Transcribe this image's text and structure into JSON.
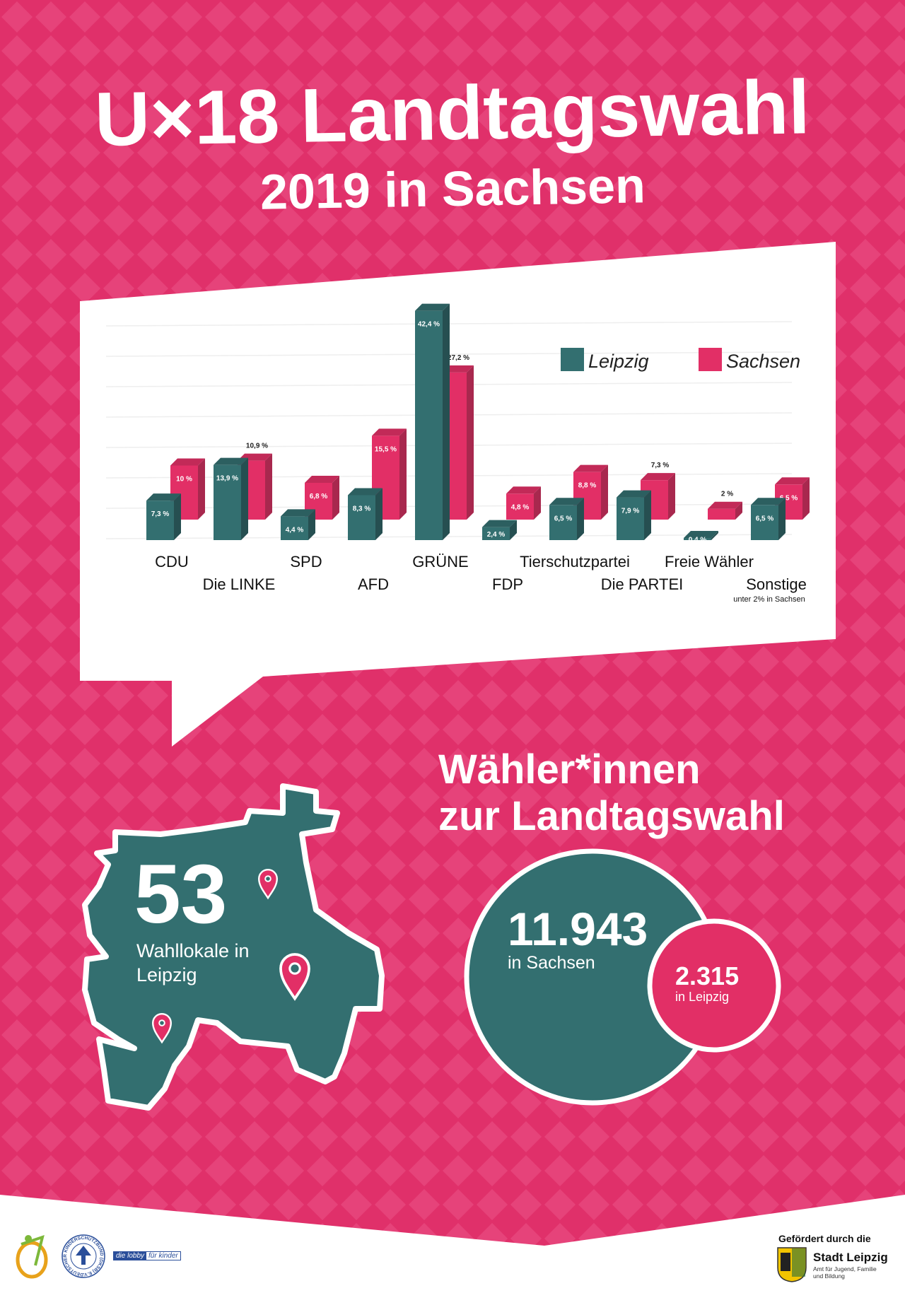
{
  "title": {
    "line1": "U×18 Landtagswahl",
    "line2": "2019 in Sachsen"
  },
  "colors": {
    "background": "#E0306A",
    "pattern": "#E84A7E",
    "leipzig": "#336F70",
    "sachsen": "#E22F66"
  },
  "chart_data": {
    "type": "bar",
    "categories": [
      "CDU",
      "Die LINKE",
      "SPD",
      "AFD",
      "GRÜNE",
      "FDP",
      "Tierschutzpartei",
      "Die PARTEI",
      "Freie Wähler",
      "Sonstige"
    ],
    "category_notes": {
      "Sonstige": "unter 2% in Sachsen"
    },
    "series": [
      {
        "name": "Leipzig",
        "values": [
          7.3,
          13.9,
          4.4,
          8.3,
          42.4,
          2.4,
          6.5,
          7.9,
          0.4,
          6.5
        ],
        "labels": [
          "7,3 %",
          "13,9 %",
          "4,4 %",
          "8,3 %",
          "42,4 %",
          "2,4 %",
          "6,5 %",
          "7,9 %",
          "0,4 %",
          "6,5 %"
        ]
      },
      {
        "name": "Sachsen",
        "values": [
          10,
          10.9,
          6.8,
          15.5,
          27.2,
          4.8,
          8.8,
          7.3,
          2,
          6.5
        ],
        "labels": [
          "10 %",
          "10,9 %",
          "6,8 %",
          "15,5 %",
          "27,2 %",
          "4,8 %",
          "8,8 %",
          "7,3 %",
          "2 %",
          "6,5 %"
        ]
      }
    ],
    "unit": "%",
    "legend_position": "top-right",
    "grid": true,
    "style": "3d-bars"
  },
  "wahllokale": {
    "number": "53",
    "label_line1": "Wahllokale in",
    "label_line2": "Leipzig"
  },
  "voters": {
    "heading_line1": "Wähler*innen",
    "heading_line2": "zur Landtagswahl",
    "sachsen": {
      "number": "11.943",
      "label": "in Sachsen"
    },
    "leipzig": {
      "number": "2.315",
      "label": "in Leipzig"
    }
  },
  "footer": {
    "lobby": "die lobby",
    "lobby2": "für kinder",
    "dksb": "DEUTSCHER KINDERSCHUTZBUND (DKSB) E.V.",
    "funded_by": "Gefördert durch die",
    "city": "Stadt Leipzig",
    "dept_line1": "Amt für Jugend, Familie",
    "dept_line2": "und Bildung"
  }
}
